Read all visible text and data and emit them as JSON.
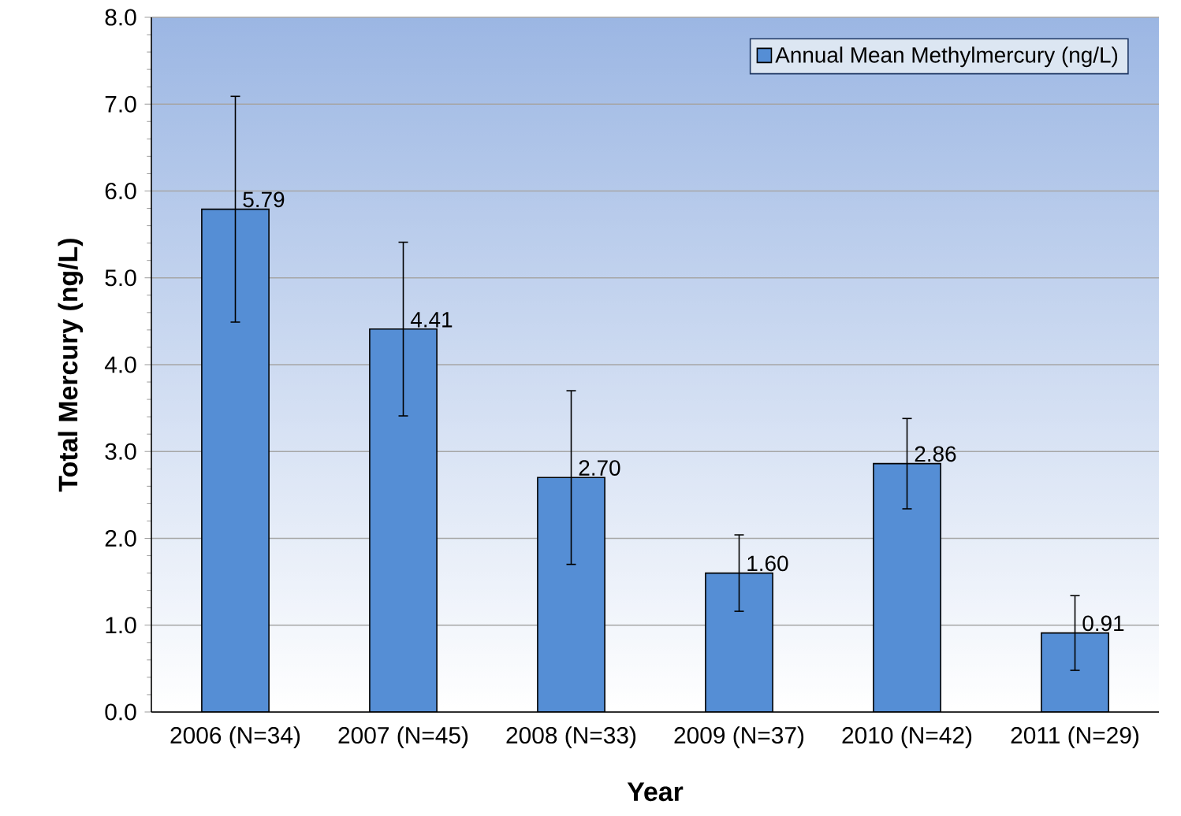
{
  "chart_data": {
    "type": "bar",
    "xlabel": "Year",
    "ylabel": "Total Mercury (ng/L)",
    "categories": [
      "2006 (N=34)",
      "2007 (N=45)",
      "2008 (N=33)",
      "2009 (N=37)",
      "2010 (N=42)",
      "2011 (N=29)"
    ],
    "series": [
      {
        "name": "Annual Mean Methylmercury (ng/L)",
        "color": "#558ed5",
        "values": [
          5.79,
          4.41,
          2.7,
          1.6,
          2.86,
          0.91
        ],
        "errors": [
          1.3,
          1.0,
          1.0,
          0.44,
          0.52,
          0.43
        ],
        "value_labels": [
          "5.79",
          "4.41",
          "2.70",
          "1.60",
          "2.86",
          "0.91"
        ]
      }
    ],
    "ylim": [
      0,
      8
    ],
    "yticks": [
      {
        "value": 0,
        "label": "0.0"
      },
      {
        "value": 1,
        "label": "1.0"
      },
      {
        "value": 2,
        "label": "2.0"
      },
      {
        "value": 3,
        "label": "3.0"
      },
      {
        "value": 4,
        "label": "4.0"
      },
      {
        "value": 5,
        "label": "5.0"
      },
      {
        "value": 6,
        "label": "6.0"
      },
      {
        "value": 7,
        "label": "7.0"
      },
      {
        "value": 8,
        "label": "8.0"
      }
    ],
    "grid": "y",
    "legend": "top right"
  }
}
